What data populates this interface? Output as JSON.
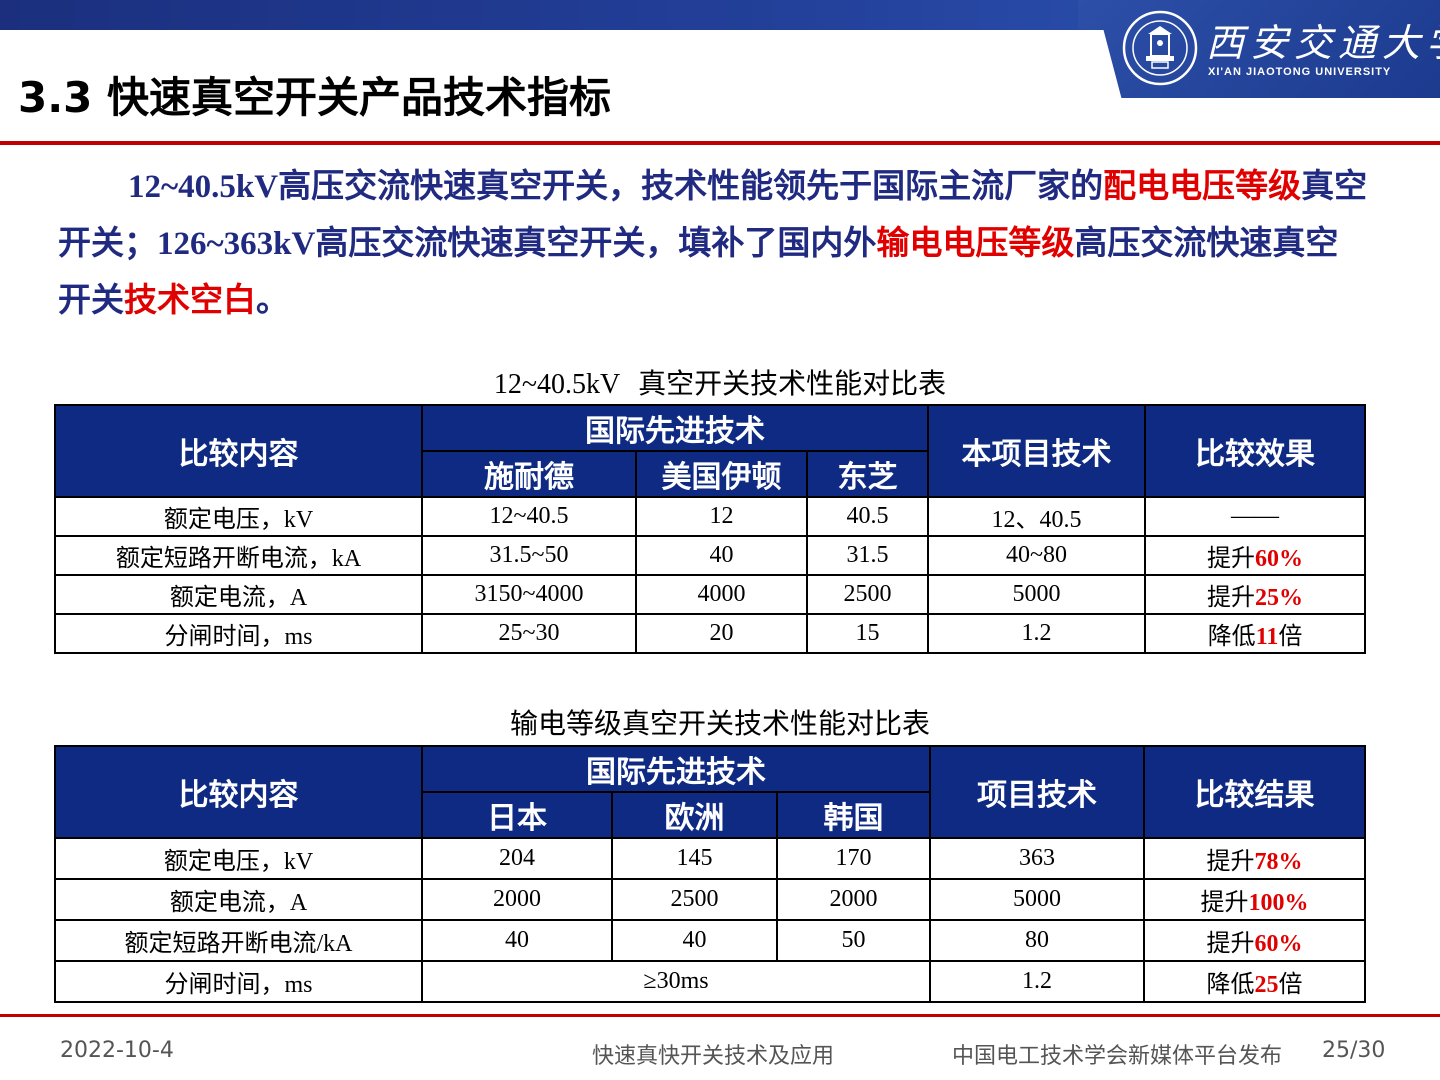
{
  "header": {
    "university_cn": "西安交通大学",
    "university_en": "XI'AN JIAOTONG UNIVERSITY",
    "seal_text": "国立交通大学"
  },
  "title": "3.3 快速真空开关产品技术指标",
  "intro": {
    "p1": "12~40.5kV",
    "p2": "高压交流快速真空开关，技术性能领先于国际主流厂家的",
    "p3": "配电电压等级",
    "p4": "真空开关；",
    "p5": "126~363kV",
    "p6": "高压交流快速真空开关，填补了国内外",
    "p7": "输电电压等级",
    "p8": "高压交流快速真空开关",
    "p9": "技术空白",
    "p10": "。"
  },
  "table1": {
    "caption_a": "12~40.5kV",
    "caption_b": "真空开关技术性能对比表",
    "h_content": "比较内容",
    "h_intl": "国际先进技术",
    "h_c1": "施耐德",
    "h_c2": "美国伊顿",
    "h_c3": "东芝",
    "h_proj": "本项目技术",
    "h_effect": "比较效果",
    "rows": [
      {
        "label": "额定电压，kV",
        "c1": "12~40.5",
        "c2": "12",
        "c3": "40.5",
        "proj": "12、40.5",
        "pre": "——",
        "val": "",
        "post": ""
      },
      {
        "label": "额定短路开断电流，kA",
        "c1": "31.5~50",
        "c2": "40",
        "c3": "31.5",
        "proj": "40~80",
        "pre": "提升",
        "val": "60%",
        "post": ""
      },
      {
        "label": "额定电流，A",
        "c1": "3150~4000",
        "c2": "4000",
        "c3": "2500",
        "proj": "5000",
        "pre": "提升",
        "val": "25%",
        "post": ""
      },
      {
        "label": "分闸时间，ms",
        "c1": "25~30",
        "c2": "20",
        "c3": "15",
        "proj": "1.2",
        "pre": "降低",
        "val": "11",
        "post": "倍"
      }
    ]
  },
  "table2": {
    "caption": "输电等级真空开关技术性能对比表",
    "h_content": "比较内容",
    "h_intl": "国际先进技术",
    "h_c1": "日本",
    "h_c2": "欧洲",
    "h_c3": "韩国",
    "h_proj": "项目技术",
    "h_effect": "比较结果",
    "rows": [
      {
        "label": "额定电压，kV",
        "c1": "204",
        "c2": "145",
        "c3": "170",
        "proj": "363",
        "pre": "提升",
        "val": "78%",
        "post": ""
      },
      {
        "label": "额定电流，A",
        "c1": "2000",
        "c2": "2500",
        "c3": "2000",
        "proj": "5000",
        "pre": "提升",
        "val": "100%",
        "post": ""
      },
      {
        "label": "额定短路开断电流/kA",
        "c1": "40",
        "c2": "40",
        "c3": "50",
        "proj": "80",
        "pre": "提升",
        "val": "60%",
        "post": ""
      }
    ],
    "last_row": {
      "label": "分闸时间，ms",
      "merged": "≥30ms",
      "proj": "1.2",
      "pre": "降低",
      "val": "25",
      "post": "倍"
    }
  },
  "footer": {
    "date": "2022-10-4",
    "center": "快速真快开关技术及应用",
    "publisher": "中国电工技术学会新媒体平台发布",
    "page": "25/30"
  },
  "colors": {
    "header_blue": "#0f2a82",
    "accent_red": "#e00000",
    "text_navy": "#1f2a80"
  }
}
